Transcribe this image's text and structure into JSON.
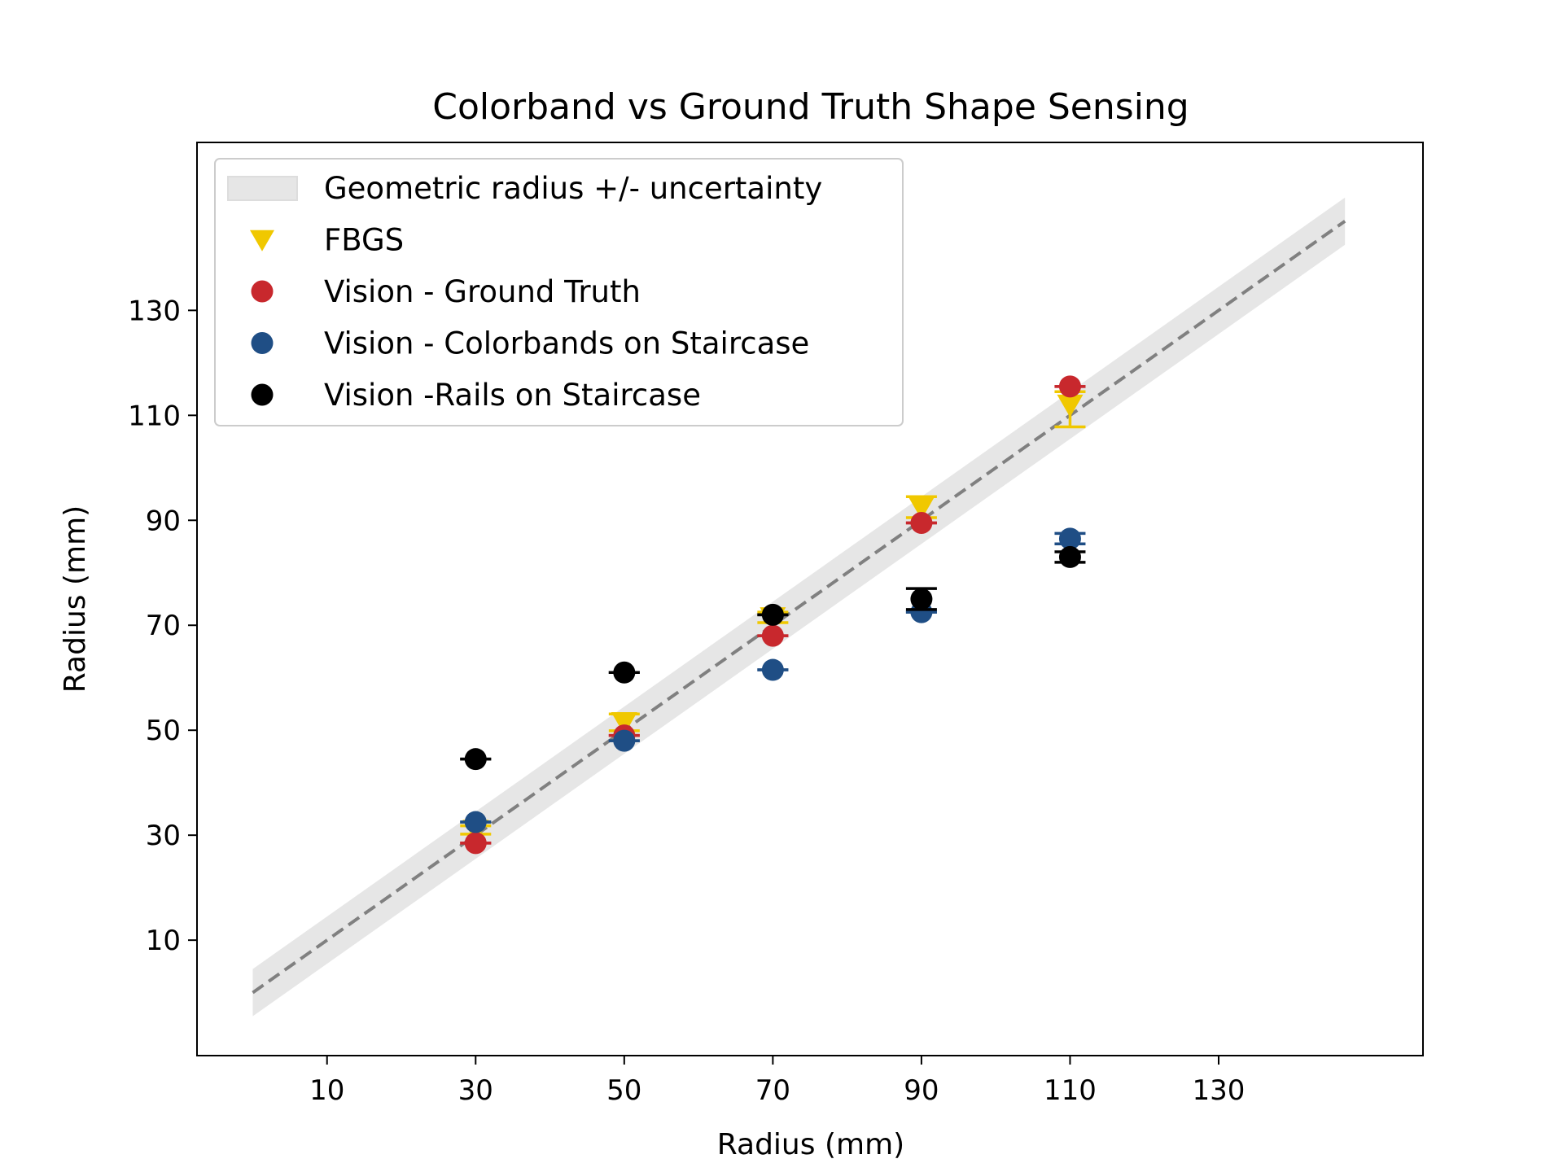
{
  "chart_data": {
    "type": "scatter",
    "title": "Colorband vs Ground Truth Shape Sensing",
    "xlabel": "Radius (mm)",
    "ylabel": "Radius (mm)",
    "xlim": [
      -7.5,
      157.5
    ],
    "ylim": [
      -12,
      162
    ],
    "xticks": [
      10,
      30,
      50,
      70,
      90,
      110,
      130
    ],
    "yticks": [
      10,
      30,
      50,
      70,
      90,
      110,
      130
    ],
    "grid": false,
    "legend_position": "upper-left",
    "band": {
      "name": "Geometric radius +/- uncertainty",
      "x": [
        0,
        147
      ],
      "center": [
        0,
        147
      ],
      "halfwidth": 4.5,
      "color": "#e6e6e6",
      "line_color": "#808080",
      "line_style": "dashed"
    },
    "series": [
      {
        "name": "FBGS",
        "marker": "triangle-down",
        "color": "#f0c800",
        "x": [
          30,
          50,
          70,
          90,
          110
        ],
        "y": [
          31,
          51.5,
          71.5,
          92.5,
          112
        ],
        "yerr": [
          [
            0.8,
            0.8
          ],
          [
            1.6,
            1.6
          ],
          [
            1.0,
            1.0
          ],
          [
            2.0,
            2.0
          ],
          [
            4.2,
            2.5
          ]
        ]
      },
      {
        "name": "Vision - Ground Truth",
        "marker": "circle",
        "color": "#c8282d",
        "x": [
          30,
          50,
          70,
          90,
          110
        ],
        "y": [
          28.5,
          49,
          68,
          89.5,
          115.5
        ],
        "yerr": [
          [
            0,
            0
          ],
          [
            0,
            0
          ],
          [
            0,
            0
          ],
          [
            0,
            0
          ],
          [
            0,
            0
          ]
        ]
      },
      {
        "name": "Vision - Colorbands on Staircase",
        "marker": "circle",
        "color": "#1f4e85",
        "x": [
          30,
          50,
          70,
          90,
          110
        ],
        "y": [
          32.5,
          48,
          61.5,
          72.5,
          86.5
        ],
        "yerr": [
          [
            0,
            0
          ],
          [
            0,
            0
          ],
          [
            0,
            0
          ],
          [
            0,
            0
          ],
          [
            1,
            1
          ]
        ]
      },
      {
        "name": "Vision -Rails on Staircase",
        "marker": "circle",
        "color": "#000000",
        "x": [
          30,
          50,
          70,
          90,
          110
        ],
        "y": [
          44.5,
          61,
          72,
          75,
          83
        ],
        "yerr": [
          [
            0,
            0
          ],
          [
            0,
            0
          ],
          [
            0,
            0
          ],
          [
            2,
            2
          ],
          [
            1,
            1
          ]
        ]
      }
    ]
  }
}
